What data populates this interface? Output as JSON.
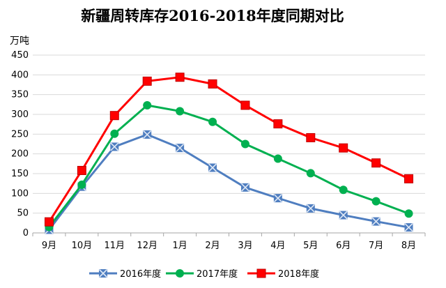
{
  "chart_data": {
    "type": "line",
    "title": "新疆周转库存2016-2018年度同期对比",
    "ylabel": "万吨",
    "xlabel": "",
    "categories": [
      "9月",
      "10月",
      "11月",
      "12月",
      "1月",
      "2月",
      "3月",
      "4月",
      "5月",
      "6月",
      "7月",
      "8月"
    ],
    "ylim": [
      0,
      450
    ],
    "yticks": [
      0,
      50,
      100,
      150,
      200,
      250,
      300,
      350,
      400,
      450
    ],
    "grid": true,
    "legend_position": "bottom",
    "series": [
      {
        "name": "2016年度",
        "color": "#4F7EC0",
        "marker": "x-square",
        "values": [
          8,
          117,
          218,
          249,
          215,
          165,
          115,
          88,
          62,
          45,
          29,
          14
        ]
      },
      {
        "name": "2017年度",
        "color": "#00B050",
        "marker": "circle",
        "values": [
          15,
          122,
          251,
          323,
          308,
          281,
          225,
          188,
          151,
          109,
          80,
          49
        ]
      },
      {
        "name": "2018年度",
        "color": "#FF0000",
        "marker": "square",
        "values": [
          28,
          158,
          297,
          384,
          394,
          377,
          323,
          276,
          241,
          215,
          177,
          137
        ]
      }
    ]
  }
}
